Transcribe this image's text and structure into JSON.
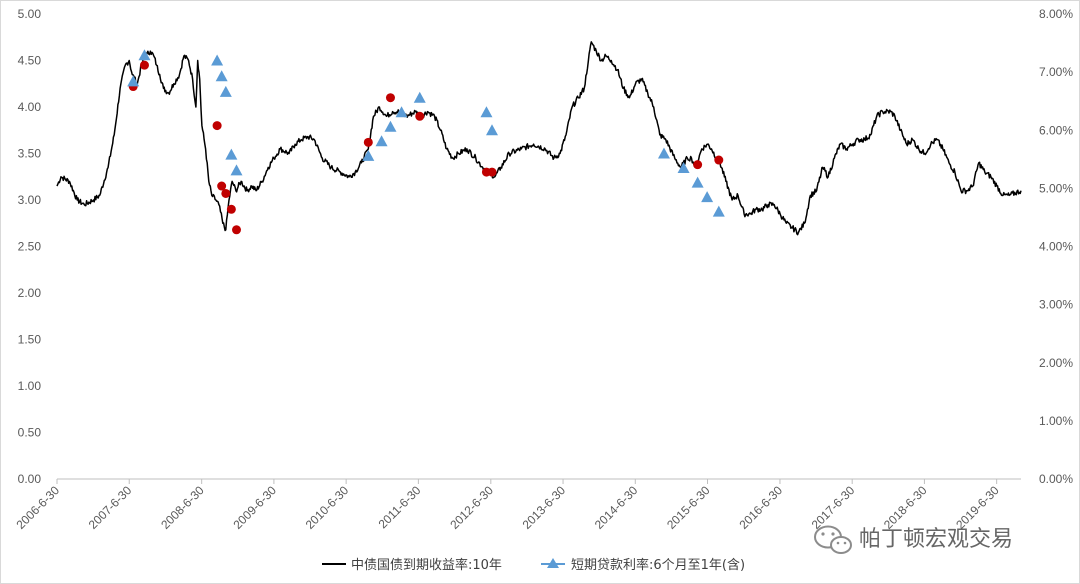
{
  "chart_data": {
    "type": "line",
    "title": "",
    "y_left": {
      "min": 0,
      "max": 5,
      "ticks": [
        "0.00",
        "0.50",
        "1.00",
        "1.50",
        "2.00",
        "2.50",
        "3.00",
        "3.50",
        "4.00",
        "4.50",
        "5.00"
      ]
    },
    "y_right": {
      "min": 0,
      "max": 8,
      "ticks": [
        "0.00%",
        "1.00%",
        "2.00%",
        "3.00%",
        "4.00%",
        "5.00%",
        "6.00%",
        "7.00%",
        "8.00%"
      ]
    },
    "x_ticks": [
      "2006-6-30",
      "2007-6-30",
      "2008-6-30",
      "2009-6-30",
      "2010-6-30",
      "2011-6-30",
      "2012-6-30",
      "2013-6-30",
      "2014-6-30",
      "2015-6-30",
      "2016-6-30",
      "2017-6-30",
      "2018-6-30",
      "2019-6-30"
    ],
    "x_range": [
      "2006-6-30",
      "2019-10-31"
    ],
    "grid": false,
    "legend_position": "bottom",
    "series": [
      {
        "name": "中债国债到期收益率:10年",
        "axis": "left",
        "color": "#000000",
        "points": [
          [
            "2006-06-30",
            3.15
          ],
          [
            "2006-07-20",
            3.25
          ],
          [
            "2006-09-01",
            3.2
          ],
          [
            "2006-10-10",
            3.0
          ],
          [
            "2006-11-15",
            2.95
          ],
          [
            "2006-12-31",
            3.0
          ],
          [
            "2007-02-01",
            3.05
          ],
          [
            "2007-03-15",
            3.35
          ],
          [
            "2007-04-15",
            3.7
          ],
          [
            "2007-05-15",
            4.2
          ],
          [
            "2007-06-10",
            4.45
          ],
          [
            "2007-06-30",
            4.5
          ],
          [
            "2007-07-15",
            4.35
          ],
          [
            "2007-08-10",
            4.25
          ],
          [
            "2007-08-31",
            4.45
          ],
          [
            "2007-09-20",
            4.55
          ],
          [
            "2007-10-15",
            4.6
          ],
          [
            "2007-11-01",
            4.55
          ],
          [
            "2007-11-15",
            4.45
          ],
          [
            "2007-12-01",
            4.35
          ],
          [
            "2007-12-20",
            4.2
          ],
          [
            "2008-01-15",
            4.15
          ],
          [
            "2008-02-10",
            4.25
          ],
          [
            "2008-03-10",
            4.35
          ],
          [
            "2008-04-01",
            4.55
          ],
          [
            "2008-04-25",
            4.5
          ],
          [
            "2008-05-15",
            4.3
          ],
          [
            "2008-06-01",
            4.0
          ],
          [
            "2008-06-10",
            4.5
          ],
          [
            "2008-06-20",
            4.3
          ],
          [
            "2008-07-01",
            3.8
          ],
          [
            "2008-07-20",
            3.55
          ],
          [
            "2008-08-05",
            3.2
          ],
          [
            "2008-08-20",
            3.05
          ],
          [
            "2008-09-10",
            3.0
          ],
          [
            "2008-09-25",
            2.95
          ],
          [
            "2008-10-15",
            2.75
          ],
          [
            "2008-10-30",
            2.68
          ],
          [
            "2008-11-15",
            3.0
          ],
          [
            "2008-12-01",
            3.2
          ],
          [
            "2008-12-20",
            3.1
          ],
          [
            "2009-01-15",
            3.2
          ],
          [
            "2009-02-15",
            3.1
          ],
          [
            "2009-03-10",
            3.15
          ],
          [
            "2009-04-01",
            3.1
          ],
          [
            "2009-05-01",
            3.2
          ],
          [
            "2009-06-01",
            3.35
          ],
          [
            "2009-06-30",
            3.45
          ],
          [
            "2009-08-01",
            3.55
          ],
          [
            "2009-09-15",
            3.5
          ],
          [
            "2009-10-15",
            3.6
          ],
          [
            "2009-11-15",
            3.65
          ],
          [
            "2009-12-20",
            3.68
          ],
          [
            "2010-01-20",
            3.65
          ],
          [
            "2010-03-01",
            3.45
          ],
          [
            "2010-04-15",
            3.35
          ],
          [
            "2010-06-01",
            3.3
          ],
          [
            "2010-07-15",
            3.25
          ],
          [
            "2010-08-15",
            3.3
          ],
          [
            "2010-09-15",
            3.4
          ],
          [
            "2010-10-20",
            3.55
          ],
          [
            "2010-11-15",
            3.9
          ],
          [
            "2010-12-15",
            4.0
          ],
          [
            "2011-01-20",
            3.9
          ],
          [
            "2011-02-20",
            3.95
          ],
          [
            "2011-04-01",
            3.95
          ],
          [
            "2011-05-01",
            3.9
          ],
          [
            "2011-06-15",
            3.95
          ],
          [
            "2011-07-15",
            3.9
          ],
          [
            "2011-08-15",
            3.95
          ],
          [
            "2011-09-20",
            3.9
          ],
          [
            "2011-10-20",
            3.75
          ],
          [
            "2011-11-20",
            3.55
          ],
          [
            "2011-12-20",
            3.45
          ],
          [
            "2012-01-20",
            3.5
          ],
          [
            "2012-03-01",
            3.55
          ],
          [
            "2012-04-15",
            3.45
          ],
          [
            "2012-05-20",
            3.35
          ],
          [
            "2012-06-20",
            3.3
          ],
          [
            "2012-07-20",
            3.25
          ],
          [
            "2012-08-20",
            3.35
          ],
          [
            "2012-10-01",
            3.5
          ],
          [
            "2012-12-01",
            3.55
          ],
          [
            "2013-02-01",
            3.6
          ],
          [
            "2013-04-01",
            3.55
          ],
          [
            "2013-05-15",
            3.45
          ],
          [
            "2013-06-15",
            3.5
          ],
          [
            "2013-07-15",
            3.7
          ],
          [
            "2013-08-15",
            4.0
          ],
          [
            "2013-09-15",
            4.1
          ],
          [
            "2013-10-15",
            4.2
          ],
          [
            "2013-11-05",
            4.5
          ],
          [
            "2013-11-20",
            4.7
          ],
          [
            "2013-12-15",
            4.6
          ],
          [
            "2014-01-10",
            4.5
          ],
          [
            "2014-02-01",
            4.55
          ],
          [
            "2014-03-01",
            4.5
          ],
          [
            "2014-04-01",
            4.4
          ],
          [
            "2014-05-01",
            4.2
          ],
          [
            "2014-06-01",
            4.1
          ],
          [
            "2014-07-01",
            4.25
          ],
          [
            "2014-08-01",
            4.3
          ],
          [
            "2014-09-01",
            4.15
          ],
          [
            "2014-10-01",
            4.0
          ],
          [
            "2014-11-01",
            3.7
          ],
          [
            "2014-12-01",
            3.65
          ],
          [
            "2015-01-15",
            3.45
          ],
          [
            "2015-02-15",
            3.35
          ],
          [
            "2015-03-20",
            3.45
          ],
          [
            "2015-04-10",
            3.45
          ],
          [
            "2015-05-01",
            3.35
          ],
          [
            "2015-06-01",
            3.55
          ],
          [
            "2015-06-30",
            3.6
          ],
          [
            "2015-07-20",
            3.55
          ],
          [
            "2015-08-15",
            3.45
          ],
          [
            "2015-09-01",
            3.4
          ],
          [
            "2015-10-01",
            3.2
          ],
          [
            "2015-11-01",
            3.0
          ],
          [
            "2015-12-01",
            3.05
          ],
          [
            "2016-01-01",
            2.85
          ],
          [
            "2016-02-01",
            2.85
          ],
          [
            "2016-03-01",
            2.9
          ],
          [
            "2016-04-01",
            2.9
          ],
          [
            "2016-05-01",
            2.95
          ],
          [
            "2016-06-01",
            2.95
          ],
          [
            "2016-07-01",
            2.85
          ],
          [
            "2016-08-01",
            2.75
          ],
          [
            "2016-09-01",
            2.7
          ],
          [
            "2016-10-01",
            2.65
          ],
          [
            "2016-11-01",
            2.75
          ],
          [
            "2016-12-01",
            3.05
          ],
          [
            "2017-01-01",
            3.1
          ],
          [
            "2017-02-01",
            3.35
          ],
          [
            "2017-03-01",
            3.25
          ],
          [
            "2017-04-01",
            3.45
          ],
          [
            "2017-05-01",
            3.6
          ],
          [
            "2017-06-01",
            3.55
          ],
          [
            "2017-07-01",
            3.6
          ],
          [
            "2017-08-01",
            3.65
          ],
          [
            "2017-09-01",
            3.65
          ],
          [
            "2017-10-01",
            3.7
          ],
          [
            "2017-11-01",
            3.9
          ],
          [
            "2017-12-01",
            3.95
          ],
          [
            "2018-01-10",
            3.95
          ],
          [
            "2018-02-01",
            3.9
          ],
          [
            "2018-03-01",
            3.75
          ],
          [
            "2018-04-01",
            3.6
          ],
          [
            "2018-05-01",
            3.65
          ],
          [
            "2018-06-01",
            3.55
          ],
          [
            "2018-07-01",
            3.5
          ],
          [
            "2018-08-01",
            3.6
          ],
          [
            "2018-09-01",
            3.65
          ],
          [
            "2018-10-01",
            3.55
          ],
          [
            "2018-11-01",
            3.4
          ],
          [
            "2018-12-01",
            3.3
          ],
          [
            "2019-01-01",
            3.1
          ],
          [
            "2019-02-01",
            3.1
          ],
          [
            "2019-03-01",
            3.15
          ],
          [
            "2019-04-01",
            3.4
          ],
          [
            "2019-05-01",
            3.3
          ],
          [
            "2019-06-01",
            3.25
          ],
          [
            "2019-07-01",
            3.15
          ],
          [
            "2019-08-01",
            3.05
          ],
          [
            "2019-09-01",
            3.05
          ],
          [
            "2019-10-31",
            3.1
          ]
        ]
      },
      {
        "name": "短期贷款利率:6个月至1年(含)",
        "axis": "right",
        "color": "#5b9bd5",
        "marker": "triangle",
        "points": [
          [
            "2007-07-20",
            6.84
          ],
          [
            "2007-09-15",
            7.29
          ],
          [
            "2008-09-16",
            7.2
          ],
          [
            "2008-10-09",
            6.93
          ],
          [
            "2008-10-30",
            6.66
          ],
          [
            "2008-11-27",
            5.58
          ],
          [
            "2008-12-23",
            5.31
          ],
          [
            "2010-10-20",
            5.56
          ],
          [
            "2010-12-26",
            5.81
          ],
          [
            "2011-02-09",
            6.06
          ],
          [
            "2011-04-06",
            6.31
          ],
          [
            "2011-07-07",
            6.56
          ],
          [
            "2012-06-08",
            6.31
          ],
          [
            "2012-07-06",
            6.0
          ],
          [
            "2014-11-22",
            5.6
          ],
          [
            "2015-03-01",
            5.35
          ],
          [
            "2015-05-11",
            5.1
          ],
          [
            "2015-06-28",
            4.85
          ],
          [
            "2015-08-26",
            4.6
          ]
        ]
      }
    ],
    "highlight_points": {
      "color": "#c00000",
      "axis": "left",
      "points": [
        [
          "2007-07-20",
          4.22
        ],
        [
          "2007-09-15",
          4.45
        ],
        [
          "2008-09-16",
          3.8
        ],
        [
          "2008-10-09",
          3.15
        ],
        [
          "2008-10-30",
          3.07
        ],
        [
          "2008-11-27",
          2.9
        ],
        [
          "2008-12-23",
          2.68
        ],
        [
          "2010-10-20",
          3.62
        ],
        [
          "2011-02-09",
          4.1
        ],
        [
          "2011-07-07",
          3.9
        ],
        [
          "2012-06-08",
          3.3
        ],
        [
          "2012-07-06",
          3.3
        ],
        [
          "2015-05-11",
          3.38
        ],
        [
          "2015-08-26",
          3.43
        ]
      ]
    }
  },
  "watermark": {
    "text": "帕丁顿宏观交易",
    "icon": "wechat-icon"
  }
}
